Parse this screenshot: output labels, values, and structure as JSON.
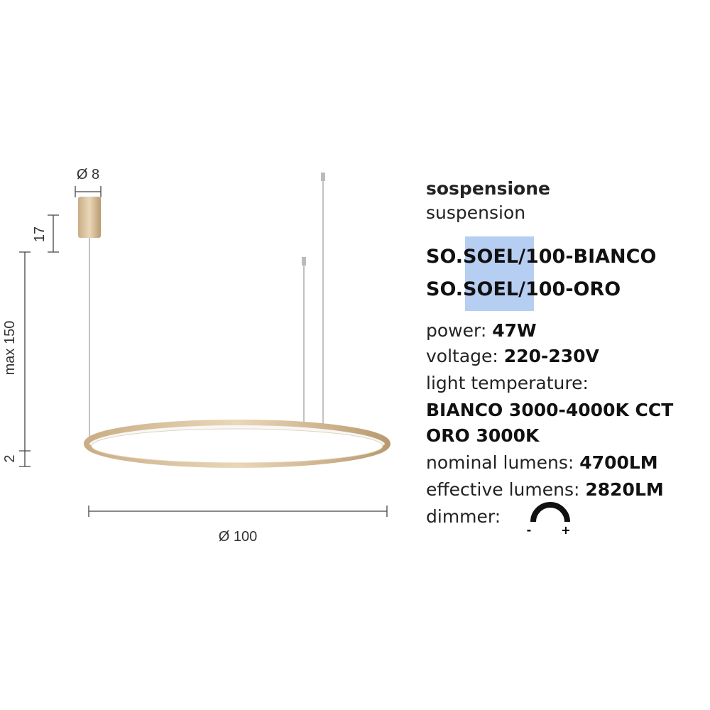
{
  "drawing": {
    "canopy_diameter": "Ø 8",
    "canopy_height": "17",
    "cable_length": "max 150",
    "ring_height": "2",
    "ring_diameter": "Ø 100"
  },
  "product": {
    "title": "sospensione",
    "subtitle": "suspension",
    "models": [
      "SO.SOEL/100-BIANCO",
      "SO.SOEL/100-ORO"
    ],
    "specs": [
      {
        "label": "power:",
        "value": "47W"
      },
      {
        "label": "voltage:",
        "value": "220-230V"
      },
      {
        "label": "light temperature:"
      },
      {
        "value": "BIANCO 3000-4000K CCT"
      },
      {
        "value": "ORO 3000K"
      },
      {
        "label": "nominal lumens:",
        "value": "4700LM"
      },
      {
        "label": "effective lumens:",
        "value": "2820LM"
      },
      {
        "label": "dimmer:"
      }
    ],
    "dimmer_signs": [
      "-",
      "+"
    ]
  }
}
